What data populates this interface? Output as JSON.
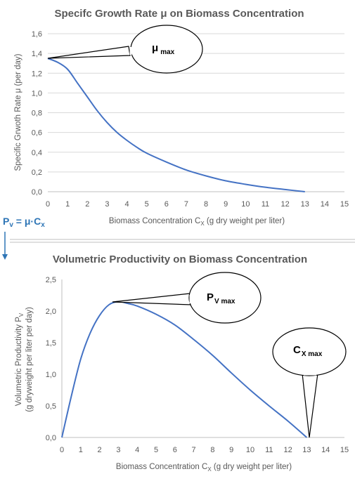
{
  "colors": {
    "series": "#4472c4",
    "formula": "#2e75b6",
    "grid": "#d9d9d9",
    "text": "#595959"
  },
  "formula": {
    "lhs": "P",
    "lhs_sub": "v",
    "rhs": " = μ·C",
    "rhs_sub": "x"
  },
  "chart_data": [
    {
      "type": "line",
      "title": "Specifc Growth Rate μ on Biomass Concentration",
      "xlabel": "Biomass Concentration C",
      "xlabel_sub": "X",
      "xlabel_tail": " (g dry weight per liter)",
      "ylabel": "Specific Grwoth Rate μ (per day)",
      "xlim": [
        0,
        15
      ],
      "ylim": [
        0,
        1.6
      ],
      "x_ticks": [
        "0",
        "1",
        "2",
        "3",
        "4",
        "5",
        "6",
        "7",
        "8",
        "9",
        "10",
        "11",
        "12",
        "13",
        "14",
        "15"
      ],
      "y_ticks": [
        "0,0",
        "0,2",
        "0,4",
        "0,6",
        "0,8",
        "1,0",
        "1,2",
        "1,4",
        "1,6"
      ],
      "grid": "horizontal",
      "series": [
        {
          "x": [
            0,
            0.5,
            1,
            1.5,
            2,
            2.5,
            3,
            3.5,
            4,
            4.5,
            5,
            6,
            7,
            8,
            9,
            10,
            11,
            12,
            13
          ],
          "y": [
            1.35,
            1.31,
            1.24,
            1.1,
            0.96,
            0.82,
            0.7,
            0.6,
            0.52,
            0.45,
            0.39,
            0.3,
            0.22,
            0.16,
            0.11,
            0.075,
            0.045,
            0.022,
            0.0
          ]
        }
      ],
      "annotation": {
        "label": "μ",
        "sub": "max",
        "points_to": [
          0,
          1.35
        ]
      }
    },
    {
      "type": "line",
      "title": "Volumetric Productivity on Biomass Concentration",
      "xlabel": "Biomass Concentration C",
      "xlabel_sub": "X",
      "xlabel_tail": " (g dry weight per liter)",
      "ylabel": "Volumetric Productivity  P",
      "ylabel_sub": "V",
      "ylabel2": "(g dryweight per liter per day)",
      "xlim": [
        0,
        15
      ],
      "ylim": [
        0,
        2.5
      ],
      "x_ticks": [
        "0",
        "1",
        "2",
        "3",
        "4",
        "5",
        "6",
        "7",
        "8",
        "9",
        "10",
        "11",
        "12",
        "13",
        "14",
        "15"
      ],
      "y_ticks": [
        "0,0",
        "0,5",
        "1,0",
        "1,5",
        "2,0",
        "2,5"
      ],
      "grid": "none",
      "series": [
        {
          "x": [
            0,
            0.5,
            1,
            1.5,
            2,
            2.5,
            3,
            3.5,
            4,
            5,
            6,
            7,
            8,
            9,
            10,
            11,
            12,
            13
          ],
          "y": [
            0,
            0.65,
            1.24,
            1.65,
            1.93,
            2.1,
            2.15,
            2.12,
            2.08,
            1.95,
            1.78,
            1.55,
            1.3,
            1.02,
            0.75,
            0.5,
            0.26,
            0.0
          ]
        }
      ],
      "annotations": [
        {
          "label": "P",
          "sub": "V max",
          "points_to": [
            3,
            2.15
          ]
        },
        {
          "label": "C",
          "sub": "X max",
          "points_to": [
            13,
            0
          ]
        }
      ]
    }
  ]
}
